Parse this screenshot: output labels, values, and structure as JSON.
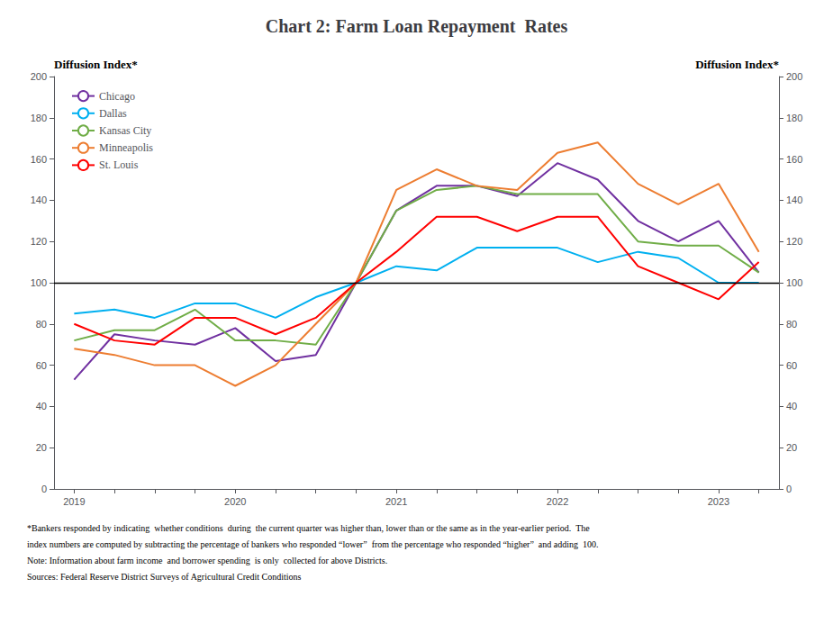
{
  "chart_data": {
    "type": "line",
    "title": "Chart 2: Farm Loan Repayment  Rates",
    "ylabel": "Diffusion Index*",
    "y2label": "Diffusion Index*",
    "footnotes": [
      "*Bankers responded by indicating  whether conditions  during  the current quarter was higher than, lower than or the same as in the year-earlier period.  The",
      "index numbers are computed by subtracting the percentage of bankers who responded “lower”  from the percentage who responded “higher”  and adding  100.",
      "Note: Information about farm income  and borrower spending  is only  collected for above Districts.",
      "Sources: Federal Reserve District Surveys of Agricultural Credit Conditions"
    ],
    "categories": [
      "2019",
      null,
      null,
      null,
      "2020",
      null,
      null,
      null,
      "2021",
      null,
      null,
      null,
      "2022",
      null,
      null,
      null,
      "2023",
      null
    ],
    "series": [
      {
        "name": "Chicago",
        "color": "#7030A0",
        "values": [
          53,
          75,
          72,
          70,
          78,
          62,
          65,
          100,
          135,
          147,
          147,
          142,
          158,
          150,
          130,
          120,
          130,
          105
        ]
      },
      {
        "name": "Dallas",
        "color": "#00B0F0",
        "values": [
          85,
          87,
          83,
          90,
          90,
          83,
          93,
          100,
          108,
          106,
          117,
          117,
          117,
          110,
          115,
          112,
          100,
          100
        ]
      },
      {
        "name": "Kansas City",
        "color": "#70AD47",
        "values": [
          72,
          77,
          77,
          87,
          72,
          72,
          70,
          100,
          135,
          145,
          147,
          143,
          143,
          143,
          120,
          118,
          118,
          105
        ]
      },
      {
        "name": "Minneapolis",
        "color": "#ED7D31",
        "values": [
          68,
          65,
          60,
          60,
          50,
          60,
          80,
          100,
          145,
          155,
          147,
          145,
          163,
          168,
          148,
          138,
          148,
          115
        ]
      },
      {
        "name": "St. Louis",
        "color": "#FF0000",
        "values": [
          80,
          72,
          70,
          83,
          83,
          75,
          83,
          100,
          115,
          132,
          132,
          125,
          132,
          132,
          108,
          100,
          92,
          110
        ]
      }
    ],
    "hline": 100,
    "ylim": [
      0,
      200
    ],
    "yticks": [
      0,
      20,
      40,
      60,
      80,
      100,
      120,
      140,
      160,
      180,
      200
    ],
    "y2lim": [
      0,
      200
    ],
    "y2ticks": [
      0,
      20,
      40,
      60,
      80,
      100,
      120,
      140,
      160,
      180,
      200
    ],
    "grid": false,
    "legend": "upper left"
  }
}
